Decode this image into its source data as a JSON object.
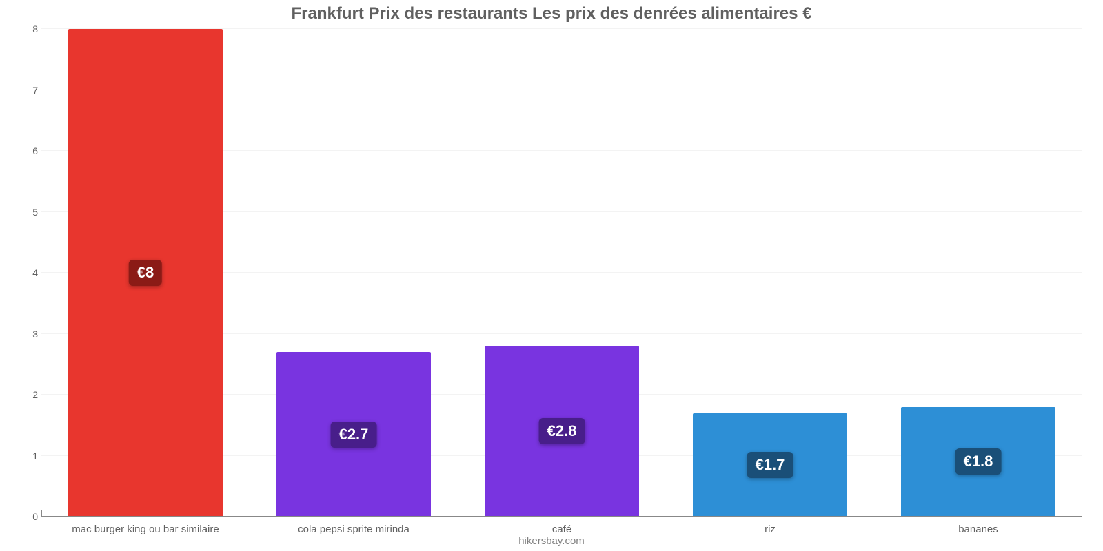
{
  "chart": {
    "type": "bar",
    "title": "Frankfurt Prix des restaurants Les prix des denrées alimentaires €",
    "title_color": "#606060",
    "title_fontsize": 24,
    "footer": "hikersbay.com",
    "footer_color": "#808080",
    "footer_fontsize": 15,
    "background_color": "#ffffff",
    "grid_color": "#f3f3f3",
    "axis_line_color": "#888888",
    "ylim": [
      0,
      8
    ],
    "ytick_step": 1,
    "ytick_labels": [
      "0",
      "1",
      "2",
      "3",
      "4",
      "5",
      "6",
      "7",
      "8"
    ],
    "ytick_color": "#606060",
    "ytick_fontsize": 14,
    "xlabel_color": "#606060",
    "xlabel_fontsize": 15,
    "bar_width_ratio": 0.74,
    "bar_label_fontsize": 22,
    "categories": [
      "mac burger king ou bar similaire",
      "cola pepsi sprite mirinda",
      "café",
      "riz",
      "bananes"
    ],
    "values": [
      8,
      2.7,
      2.8,
      1.7,
      1.8
    ],
    "display_values": [
      "€8",
      "€2.7",
      "€2.8",
      "€1.7",
      "€1.8"
    ],
    "bar_colors": [
      "#e8362e",
      "#7934e0",
      "#7934e0",
      "#2d8fd6",
      "#2d8fd6"
    ],
    "bar_label_bg": [
      "#8b1b16",
      "#481e8a",
      "#481e8a",
      "#1a4f78",
      "#1a4f78"
    ]
  }
}
